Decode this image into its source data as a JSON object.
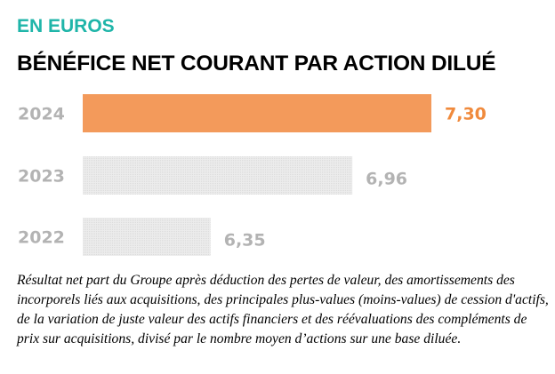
{
  "subtitle": "EN EUROS",
  "title": "BÉNÉFICE NET COURANT PAR ACTION DILUÉ",
  "footnote": "Résultat net part du Groupe après déduction des pertes de valeur, des amortissements des incorporels liés aux acquisitions, des principales plus-values (moins-values) de cession d'actifs, de la variation de juste valeur des actifs financiers et des réévaluations des compléments de prix sur acquisitions, divisé par le nombre moyen d’actions sur une base diluée.",
  "colors": {
    "subtitle": "#1fb5a9",
    "highlight_bar": "#f39a5b",
    "highlight_label": "#f08a3c",
    "other_bar": "#e6e6e6",
    "other_label": "#b3b3b3"
  },
  "chart_data": {
    "type": "bar",
    "orientation": "horizontal",
    "categories": [
      "2024",
      "2023",
      "2022"
    ],
    "values": [
      7.3,
      6.96,
      6.35
    ],
    "value_labels": [
      "7,30",
      "6,96",
      "6,35"
    ],
    "highlight": "2024",
    "xlim": [
      5.8,
      7.3
    ],
    "grid": false,
    "title": "BÉNÉFICE NET COURANT PAR ACTION DILUÉ",
    "xlabel": "",
    "ylabel": ""
  }
}
